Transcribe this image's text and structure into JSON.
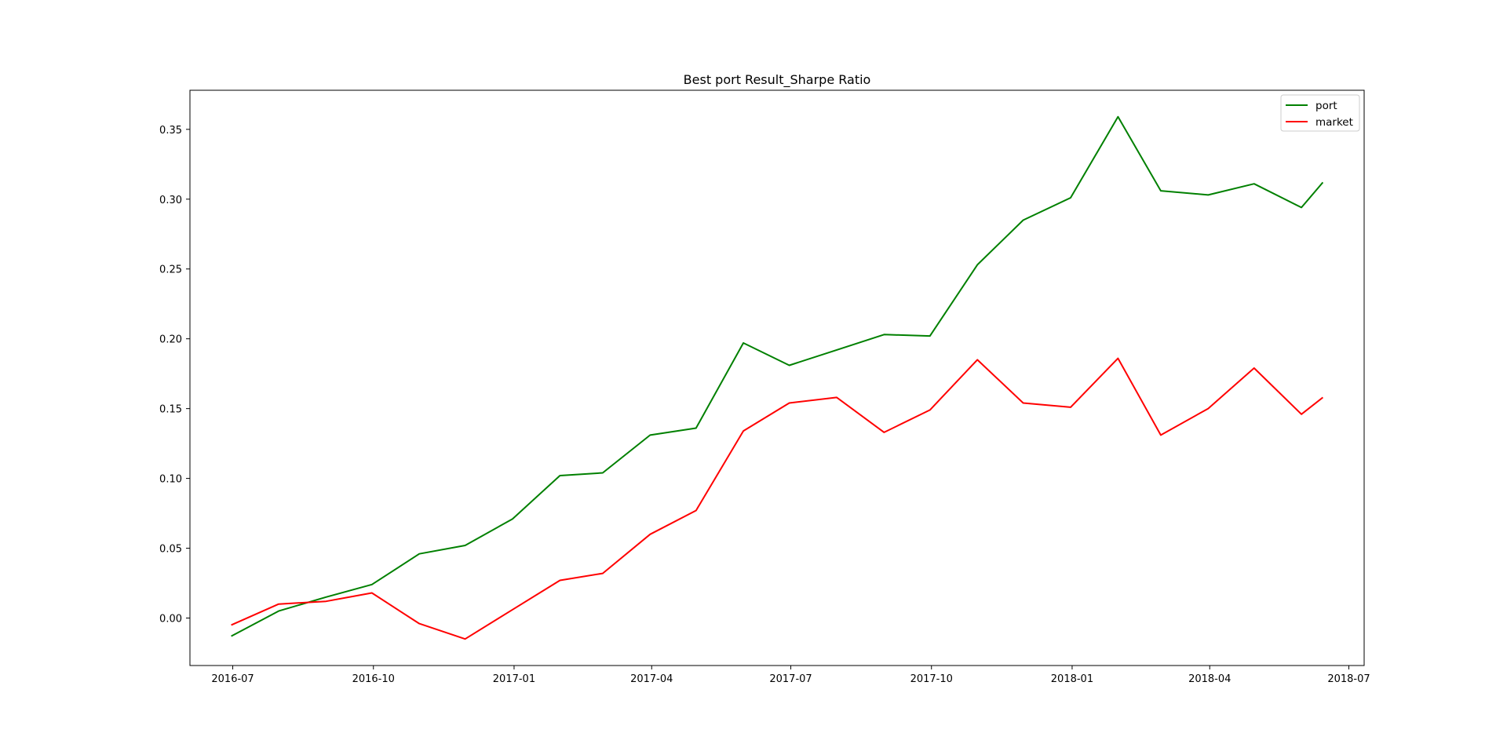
{
  "chart_data": {
    "type": "line",
    "title": "Best port Result_Sharpe Ratio",
    "xlabel": "",
    "ylabel": "",
    "x": [
      "2016-06-30",
      "2016-07-31",
      "2016-08-31",
      "2016-09-30",
      "2016-10-31",
      "2016-11-30",
      "2016-12-31",
      "2017-01-31",
      "2017-02-28",
      "2017-03-31",
      "2017-04-30",
      "2017-05-31",
      "2017-06-30",
      "2017-07-31",
      "2017-08-31",
      "2017-09-30",
      "2017-10-31",
      "2017-11-30",
      "2017-12-31",
      "2018-01-31",
      "2018-02-28",
      "2018-03-31",
      "2018-04-30",
      "2018-05-31",
      "2018-06-14"
    ],
    "series": [
      {
        "name": "port",
        "color": "#008000",
        "values": [
          -0.013,
          0.005,
          0.015,
          0.024,
          0.046,
          0.052,
          0.071,
          0.102,
          0.104,
          0.131,
          0.136,
          0.197,
          0.181,
          0.192,
          0.203,
          0.202,
          0.253,
          0.285,
          0.301,
          0.359,
          0.306,
          0.303,
          0.311,
          0.294,
          0.312
        ]
      },
      {
        "name": "market",
        "color": "#ff0000",
        "values": [
          -0.005,
          0.01,
          0.012,
          0.018,
          -0.004,
          -0.015,
          0.006,
          0.027,
          0.032,
          0.06,
          0.077,
          0.134,
          0.154,
          0.158,
          0.133,
          0.149,
          0.185,
          0.154,
          0.151,
          0.186,
          0.131,
          0.15,
          0.179,
          0.146,
          0.158
        ]
      }
    ],
    "xlim": [
      "2016-06-03",
      "2018-07-11"
    ],
    "ylim": [
      -0.034,
      0.378
    ],
    "x_ticks": [
      {
        "date": "2016-07-01",
        "label": "2016-07"
      },
      {
        "date": "2016-10-01",
        "label": "2016-10"
      },
      {
        "date": "2017-01-01",
        "label": "2017-01"
      },
      {
        "date": "2017-04-01",
        "label": "2017-04"
      },
      {
        "date": "2017-07-01",
        "label": "2017-07"
      },
      {
        "date": "2017-10-01",
        "label": "2017-10"
      },
      {
        "date": "2018-01-01",
        "label": "2018-01"
      },
      {
        "date": "2018-04-01",
        "label": "2018-04"
      },
      {
        "date": "2018-07-01",
        "label": "2018-07"
      }
    ],
    "y_ticks": [
      {
        "value": 0.0,
        "label": "0.00"
      },
      {
        "value": 0.05,
        "label": "0.05"
      },
      {
        "value": 0.1,
        "label": "0.10"
      },
      {
        "value": 0.15,
        "label": "0.15"
      },
      {
        "value": 0.2,
        "label": "0.20"
      },
      {
        "value": 0.25,
        "label": "0.25"
      },
      {
        "value": 0.3,
        "label": "0.30"
      },
      {
        "value": 0.35,
        "label": "0.35"
      }
    ],
    "grid": false,
    "legend_position": "top-right"
  }
}
